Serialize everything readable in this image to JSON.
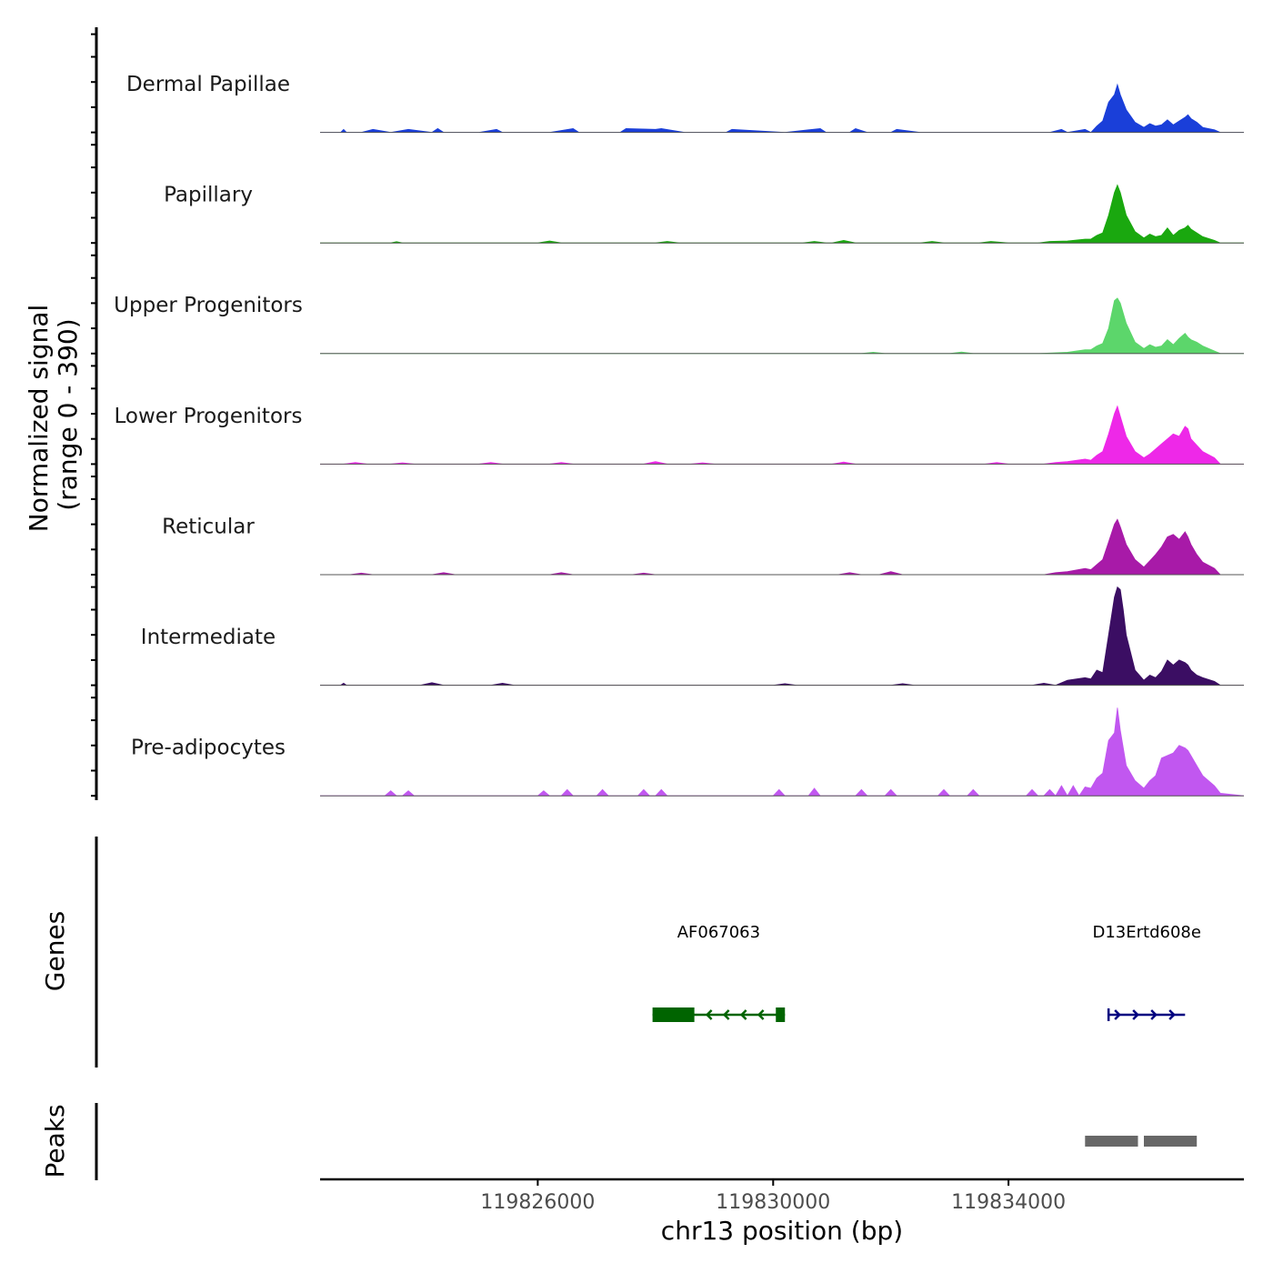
{
  "chart_data": {
    "type": "area",
    "title": "",
    "xlabel": "chr13 position (bp)",
    "ylabel": "Normalized signal",
    "ylabel_range": "(range 0 - 390)",
    "xlim": [
      119822300,
      119838000
    ],
    "ylim": [
      0,
      390
    ],
    "xticks": [
      119826000,
      119830000,
      119834000
    ],
    "xtick_labels": [
      "119826000",
      "119830000",
      "119834000"
    ],
    "series": [
      {
        "name": "Dermal Papillae",
        "color": "#1a3fd9",
        "x": [
          119822300,
          119822650,
          119822700,
          119822750,
          119823000,
          119823200,
          119823500,
          119823800,
          119824200,
          119824300,
          119824400,
          119825000,
          119825300,
          119825400,
          119826200,
          119826600,
          119826700,
          119827400,
          119827500,
          119828000,
          119828100,
          119828500,
          119829200,
          119829300,
          119830200,
          119830800,
          119830900,
          119831300,
          119831400,
          119831600,
          119832000,
          119832100,
          119832500,
          119832600,
          119833400,
          119834700,
          119834900,
          119835000,
          119835300,
          119835400,
          119835500,
          119835600,
          119835700,
          119835800,
          119835850,
          119835900,
          119836000,
          119836150,
          119836300,
          119836400,
          119836500,
          119836600,
          119836700,
          119836800,
          119836900,
          119837000,
          119837050,
          119837100,
          119837200,
          119837300,
          119837500,
          119837600,
          119838000
        ],
        "values": [
          0,
          0,
          12,
          0,
          0,
          12,
          0,
          12,
          0,
          15,
          0,
          0,
          12,
          0,
          0,
          15,
          0,
          0,
          15,
          12,
          15,
          0,
          0,
          12,
          0,
          15,
          0,
          0,
          15,
          0,
          0,
          12,
          0,
          0,
          0,
          0,
          12,
          0,
          12,
          0,
          25,
          45,
          120,
          150,
          190,
          150,
          90,
          40,
          20,
          35,
          25,
          30,
          50,
          30,
          45,
          60,
          70,
          55,
          40,
          20,
          10,
          0,
          0
        ]
      },
      {
        "name": "Papillary",
        "color": "#1aa80f",
        "x": [
          119822300,
          119823500,
          119823600,
          119823700,
          119826000,
          119826200,
          119826400,
          119828000,
          119828200,
          119828400,
          119830500,
          119830700,
          119830900,
          119831000,
          119831200,
          119831400,
          119832500,
          119832700,
          119832900,
          119833500,
          119833700,
          119834000,
          119834500,
          119834700,
          119835000,
          119835300,
          119835400,
          119835500,
          119835600,
          119835700,
          119835800,
          119835850,
          119835900,
          119836000,
          119836150,
          119836300,
          119836400,
          119836500,
          119836600,
          119836700,
          119836800,
          119836900,
          119837000,
          119837050,
          119837100,
          119837200,
          119837300,
          119837500,
          119837600,
          119838000
        ],
        "values": [
          0,
          0,
          5,
          0,
          0,
          8,
          0,
          0,
          6,
          0,
          0,
          6,
          0,
          0,
          10,
          0,
          0,
          6,
          0,
          0,
          6,
          0,
          0,
          6,
          8,
          15,
          15,
          30,
          40,
          110,
          200,
          230,
          200,
          110,
          45,
          20,
          35,
          25,
          30,
          60,
          30,
          50,
          60,
          70,
          55,
          40,
          25,
          10,
          0,
          0
        ]
      },
      {
        "name": "Upper Progenitors",
        "color": "#5cd66b",
        "x": [
          119822300,
          119831500,
          119831700,
          119831900,
          119833000,
          119833200,
          119833400,
          119834500,
          119835000,
          119835300,
          119835400,
          119835500,
          119835600,
          119835700,
          119835800,
          119835850,
          119835900,
          119836000,
          119836150,
          119836300,
          119836400,
          119836500,
          119836600,
          119836700,
          119836800,
          119836900,
          119837000,
          119837050,
          119837100,
          119837200,
          119837300,
          119837500,
          119837600,
          119838000
        ],
        "values": [
          0,
          0,
          5,
          0,
          0,
          6,
          0,
          0,
          5,
          15,
          15,
          30,
          40,
          100,
          210,
          220,
          200,
          120,
          45,
          20,
          35,
          25,
          30,
          55,
          35,
          60,
          80,
          65,
          55,
          45,
          30,
          10,
          0,
          0
        ]
      },
      {
        "name": "Lower Progenitors",
        "color": "#ee28e8",
        "x": [
          119822300,
          119822700,
          119822900,
          119823100,
          119823500,
          119823700,
          119823900,
          119825000,
          119825200,
          119825400,
          119826200,
          119826400,
          119826600,
          119827800,
          119828000,
          119828200,
          119828600,
          119828800,
          119829000,
          119831000,
          119831200,
          119831400,
          119833600,
          119833800,
          119834000,
          119834600,
          119834800,
          119835000,
          119835300,
          119835400,
          119835500,
          119835600,
          119835700,
          119835800,
          119835850,
          119835900,
          119836000,
          119836150,
          119836300,
          119836400,
          119836500,
          119836600,
          119836700,
          119836800,
          119836900,
          119837000,
          119837050,
          119837100,
          119837200,
          119837300,
          119837500,
          119837600,
          119838000
        ],
        "values": [
          0,
          0,
          6,
          0,
          0,
          5,
          0,
          0,
          6,
          0,
          0,
          6,
          0,
          0,
          10,
          0,
          0,
          5,
          0,
          0,
          8,
          0,
          0,
          6,
          0,
          0,
          6,
          10,
          20,
          15,
          35,
          50,
          120,
          200,
          230,
          190,
          110,
          50,
          25,
          40,
          60,
          80,
          100,
          120,
          110,
          150,
          140,
          100,
          75,
          50,
          25,
          0,
          0
        ]
      },
      {
        "name": "Reticular",
        "color": "#a81aa8",
        "x": [
          119822300,
          119822800,
          119823000,
          119823200,
          119824200,
          119824400,
          119824600,
          119826200,
          119826400,
          119826600,
          119827600,
          119827800,
          119828000,
          119831100,
          119831300,
          119831500,
          119831800,
          119832000,
          119832200,
          119834600,
          119834800,
          119835000,
          119835300,
          119835400,
          119835500,
          119835600,
          119835700,
          119835800,
          119835850,
          119835900,
          119836000,
          119836150,
          119836300,
          119836400,
          119836500,
          119836600,
          119836700,
          119836800,
          119836900,
          119837000,
          119837050,
          119837100,
          119837200,
          119837300,
          119837500,
          119837600,
          119838000
        ],
        "values": [
          0,
          0,
          6,
          0,
          0,
          8,
          0,
          0,
          8,
          0,
          0,
          6,
          0,
          0,
          8,
          0,
          0,
          12,
          0,
          0,
          8,
          12,
          25,
          20,
          40,
          60,
          130,
          200,
          220,
          190,
          120,
          60,
          30,
          55,
          80,
          110,
          150,
          160,
          140,
          170,
          150,
          120,
          80,
          50,
          25,
          0,
          0
        ]
      },
      {
        "name": "Intermediate",
        "color": "#3b0e63",
        "x": [
          119822300,
          119822650,
          119822700,
          119822750,
          119824000,
          119824200,
          119824400,
          119825200,
          119825400,
          119825600,
          119830000,
          119830200,
          119830400,
          119832000,
          119832200,
          119832400,
          119834400,
          119834600,
          119834800,
          119835000,
          119835300,
          119835400,
          119835500,
          119835600,
          119835700,
          119835800,
          119835850,
          119835900,
          119835950,
          119836000,
          119836150,
          119836300,
          119836400,
          119836500,
          119836600,
          119836700,
          119836800,
          119836900,
          119837000,
          119837050,
          119837100,
          119837200,
          119837300,
          119837500,
          119837600,
          119838000
        ],
        "values": [
          0,
          0,
          8,
          0,
          0,
          10,
          0,
          0,
          8,
          0,
          0,
          6,
          0,
          0,
          6,
          0,
          0,
          8,
          0,
          20,
          30,
          25,
          60,
          50,
          200,
          350,
          390,
          380,
          300,
          200,
          60,
          20,
          40,
          30,
          55,
          100,
          80,
          100,
          90,
          80,
          60,
          40,
          30,
          15,
          0,
          0
        ]
      },
      {
        "name": "Pre-adipocytes",
        "color": "#c157f0",
        "x": [
          119822300,
          119823400,
          119823500,
          119823600,
          119823700,
          119823800,
          119823900,
          119826000,
          119826100,
          119826200,
          119826400,
          119826500,
          119826600,
          119827000,
          119827100,
          119827200,
          119827700,
          119827800,
          119827900,
          119828000,
          119828100,
          119828200,
          119830000,
          119830100,
          119830200,
          119830600,
          119830700,
          119830800,
          119831400,
          119831500,
          119831600,
          119831900,
          119832000,
          119832100,
          119832800,
          119832900,
          119833000,
          119833300,
          119833400,
          119833500,
          119834300,
          119834400,
          119834500,
          119834600,
          119834700,
          119834800,
          119834900,
          119835000,
          119835100,
          119835200,
          119835300,
          119835400,
          119835500,
          119835600,
          119835700,
          119835800,
          119835850,
          119835900,
          119836000,
          119836150,
          119836300,
          119836400,
          119836500,
          119836600,
          119836700,
          119836800,
          119836900,
          119837000,
          119837050,
          119837100,
          119837200,
          119837300,
          119837500,
          119837600,
          119838000
        ],
        "values": [
          0,
          0,
          20,
          0,
          0,
          20,
          0,
          0,
          20,
          0,
          0,
          25,
          0,
          0,
          25,
          0,
          0,
          25,
          0,
          0,
          25,
          0,
          0,
          25,
          0,
          0,
          30,
          0,
          0,
          25,
          0,
          0,
          25,
          0,
          0,
          25,
          0,
          0,
          25,
          0,
          0,
          25,
          0,
          0,
          25,
          0,
          40,
          0,
          40,
          0,
          35,
          30,
          70,
          90,
          220,
          250,
          350,
          260,
          120,
          60,
          30,
          60,
          80,
          150,
          160,
          170,
          200,
          190,
          180,
          160,
          120,
          80,
          40,
          10,
          0
        ]
      }
    ],
    "genes": [
      {
        "name": "AF067063",
        "start": 119827950,
        "end": 119830200,
        "strand": "-",
        "color": "#006400"
      },
      {
        "name": "D13Ertd608e",
        "start": 119835700,
        "end": 119837000,
        "strand": "+",
        "color": "#000080"
      }
    ],
    "peaks": [
      {
        "start": 119835300,
        "end": 119836200
      },
      {
        "start": 119836300,
        "end": 119837200
      }
    ],
    "panel_labels": {
      "genes": "Genes",
      "peaks": "Peaks"
    },
    "peak_color": "#676767"
  }
}
